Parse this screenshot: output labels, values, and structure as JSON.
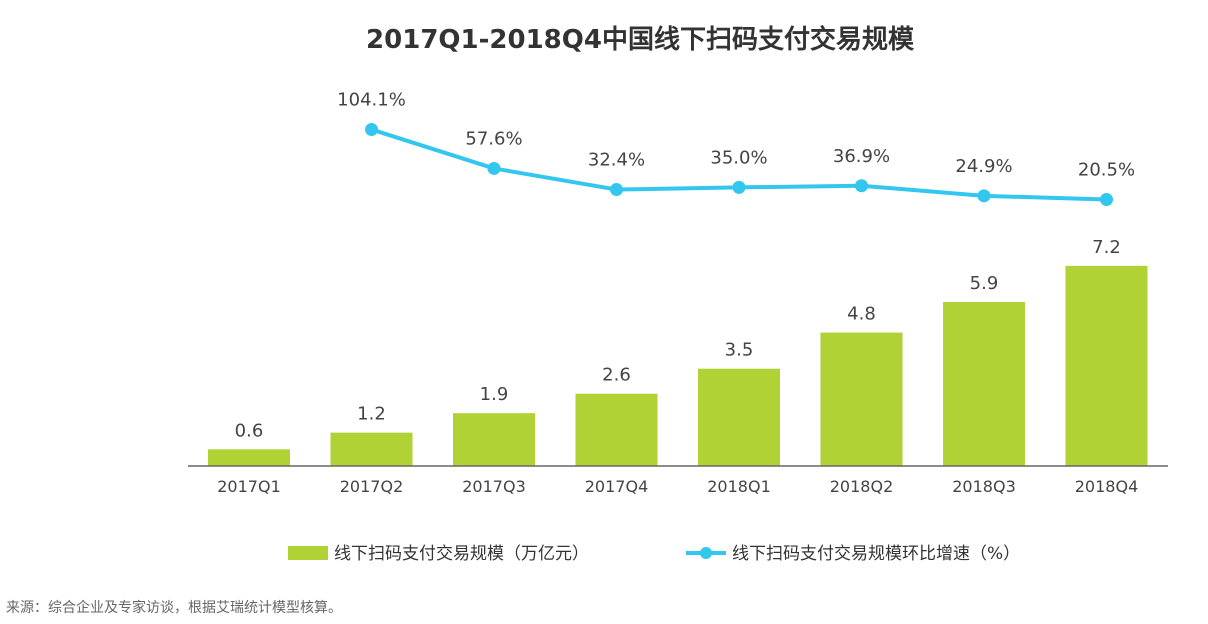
{
  "chart_data": {
    "type": "bar",
    "title": "2017Q1-2018Q4中国线下扫码支付交易规模",
    "categories": [
      "2017Q1",
      "2017Q2",
      "2017Q3",
      "2017Q4",
      "2018Q1",
      "2018Q2",
      "2018Q3",
      "2018Q4"
    ],
    "series": [
      {
        "name": "线下扫码支付交易规模（万亿元）",
        "type": "bar",
        "values": [
          0.6,
          1.2,
          1.9,
          2.6,
          3.5,
          4.8,
          5.9,
          7.2
        ],
        "labels": [
          "0.6",
          "1.2",
          "1.9",
          "2.6",
          "3.5",
          "4.8",
          "5.9",
          "7.2"
        ]
      },
      {
        "name": "线下扫码支付交易规模环比增速（%）",
        "type": "line",
        "values": [
          null,
          104.1,
          57.6,
          32.4,
          35.0,
          36.9,
          24.9,
          20.5
        ],
        "labels": [
          "",
          "104.1%",
          "57.6%",
          "32.4%",
          "35.0%",
          "36.9%",
          "24.9%",
          "20.5%"
        ]
      }
    ],
    "legend_position": "bottom",
    "grid": false,
    "colors": {
      "bar": "#b0d234",
      "line": "#33c6ee"
    }
  },
  "footer": {
    "source": "来源：综合企业及专家访谈，根据艾瑞统计模型核算。"
  }
}
